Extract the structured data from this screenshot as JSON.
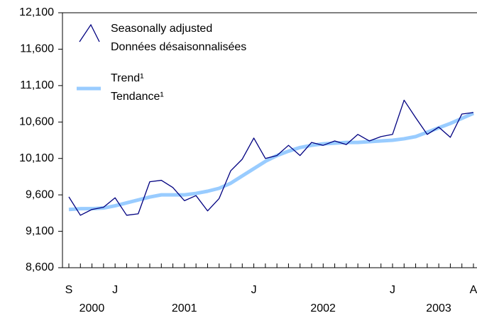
{
  "chart_data": {
    "type": "line",
    "categories": [
      "S",
      null,
      null,
      null,
      "J",
      null,
      null,
      null,
      null,
      null,
      null,
      null,
      null,
      null,
      null,
      null,
      "J",
      null,
      null,
      null,
      null,
      null,
      null,
      null,
      null,
      null,
      null,
      null,
      "J",
      null,
      null,
      null,
      null,
      null,
      null,
      "A"
    ],
    "years": [
      "2000",
      "2001",
      "2002",
      "2003"
    ],
    "ylim": [
      8600,
      12100
    ],
    "yticks": [
      {
        "value": 8600,
        "label": "8,600"
      },
      {
        "value": 9100,
        "label": "9,100"
      },
      {
        "value": 9600,
        "label": "9,600"
      },
      {
        "value": 10100,
        "label": "10,100"
      },
      {
        "value": 10600,
        "label": "10,600"
      },
      {
        "value": 11100,
        "label": "11,100"
      },
      {
        "value": 11600,
        "label": "11,600"
      },
      {
        "value": 12100,
        "label": "12,100"
      }
    ],
    "series": [
      {
        "name": [
          "Seasonally adjusted",
          "Données désaisonnalisées"
        ],
        "color": "#000080",
        "width": 1.3,
        "values": [
          9572,
          9320,
          9400,
          9430,
          9560,
          9320,
          9340,
          9780,
          9800,
          9700,
          9520,
          9590,
          9380,
          9550,
          9930,
          10090,
          10380,
          10100,
          10140,
          10280,
          10140,
          10320,
          10280,
          10340,
          10290,
          10430,
          10340,
          10400,
          10430,
          10900,
          10660,
          10430,
          10530,
          10390,
          10710,
          10730
        ]
      },
      {
        "name": [
          "Trend¹",
          "Tendance¹"
        ],
        "color": "#99ccff",
        "width": 5,
        "values": [
          9400,
          9410,
          9410,
          9420,
          9450,
          9490,
          9530,
          9570,
          9600,
          9600,
          9600,
          9620,
          9650,
          9690,
          9760,
          9860,
          9960,
          10060,
          10140,
          10200,
          10250,
          10280,
          10300,
          10310,
          10320,
          10320,
          10330,
          10340,
          10350,
          10370,
          10400,
          10460,
          10520,
          10580,
          10650,
          10720
        ]
      }
    ]
  }
}
